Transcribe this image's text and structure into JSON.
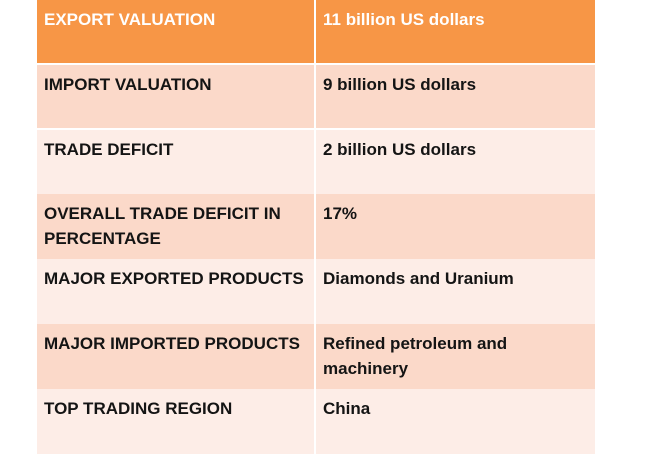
{
  "header": {
    "label": "EXPORT VALUATION",
    "value": "11 billion US dollars"
  },
  "rows": [
    {
      "label": "IMPORT VALUATION",
      "value": "9 billion US dollars"
    },
    {
      "label": "TRADE DEFICIT",
      "value": "2 billion US dollars"
    },
    {
      "label": "OVERALL TRADE DEFICIT IN PERCENTAGE",
      "value": "17%"
    },
    {
      "label": "MAJOR EXPORTED PRODUCTS",
      "value": "Diamonds and Uranium"
    },
    {
      "label": "MAJOR IMPORTED PRODUCTS",
      "value": "Refined petroleum and machinery"
    },
    {
      "label": "TOP TRADING REGION",
      "value": "China"
    }
  ],
  "colors": {
    "header_bg": "#f79646",
    "row_dark": "#fbd9c9",
    "row_light": "#fdede7"
  }
}
